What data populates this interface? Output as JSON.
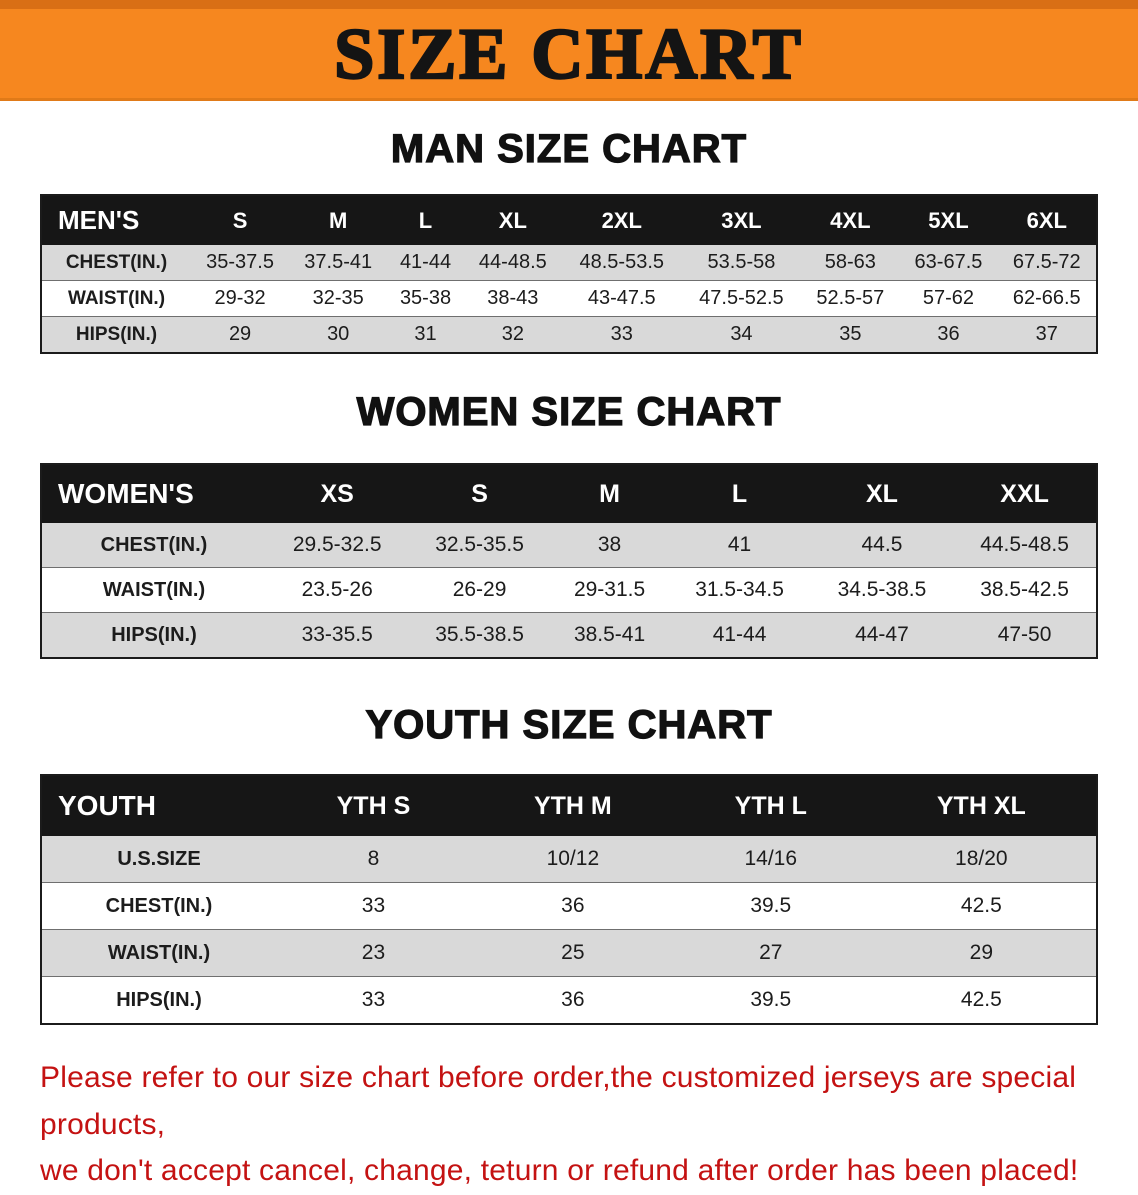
{
  "banner": {
    "title": "SIZE CHART"
  },
  "colors": {
    "banner_bg": "#f6871f",
    "banner_stripe": "#d96f15",
    "table_header_bg": "#161616",
    "row_alt_gray": "#d9d9d9",
    "notice_red": "#c41212"
  },
  "sections": [
    {
      "heading": "MAN SIZE CHART",
      "table": {
        "header": [
          "MEN'S",
          "S",
          "M",
          "L",
          "XL",
          "2XL",
          "3XL",
          "4XL",
          "5XL",
          "6XL"
        ],
        "rows": [
          [
            "CHEST(IN.)",
            "35-37.5",
            "37.5-41",
            "41-44",
            "44-48.5",
            "48.5-53.5",
            "53.5-58",
            "58-63",
            "63-67.5",
            "67.5-72"
          ],
          [
            "WAIST(IN.)",
            "29-32",
            "32-35",
            "35-38",
            "38-43",
            "43-47.5",
            "47.5-52.5",
            "52.5-57",
            "57-62",
            "62-66.5"
          ],
          [
            "HIPS(IN.)",
            "29",
            "30",
            "31",
            "32",
            "33",
            "34",
            "35",
            "36",
            "37"
          ]
        ]
      }
    },
    {
      "heading": "WOMEN SIZE CHART",
      "table": {
        "header": [
          "WOMEN'S",
          "XS",
          "S",
          "M",
          "L",
          "XL",
          "XXL"
        ],
        "rows": [
          [
            "CHEST(IN.)",
            "29.5-32.5",
            "32.5-35.5",
            "38",
            "41",
            "44.5",
            "44.5-48.5"
          ],
          [
            "WAIST(IN.)",
            "23.5-26",
            "26-29",
            "29-31.5",
            "31.5-34.5",
            "34.5-38.5",
            "38.5-42.5"
          ],
          [
            "HIPS(IN.)",
            "33-35.5",
            "35.5-38.5",
            "38.5-41",
            "41-44",
            "44-47",
            "47-50"
          ]
        ]
      }
    },
    {
      "heading": "YOUTH SIZE CHART",
      "table": {
        "header": [
          "YOUTH",
          "YTH S",
          "YTH M",
          "YTH L",
          "YTH XL"
        ],
        "rows": [
          [
            "U.S.SIZE",
            "8",
            "10/12",
            "14/16",
            "18/20"
          ],
          [
            "CHEST(IN.)",
            "33",
            "36",
            "39.5",
            "42.5"
          ],
          [
            "WAIST(IN.)",
            "23",
            "25",
            "27",
            "29"
          ],
          [
            "HIPS(IN.)",
            "33",
            "36",
            "39.5",
            "42.5"
          ]
        ]
      }
    }
  ],
  "footer": {
    "line1": "Please refer to our size chart before order,the customized jerseys are special products,",
    "line2": "we don't accept cancel, change, teturn or refund after order has been placed!"
  }
}
